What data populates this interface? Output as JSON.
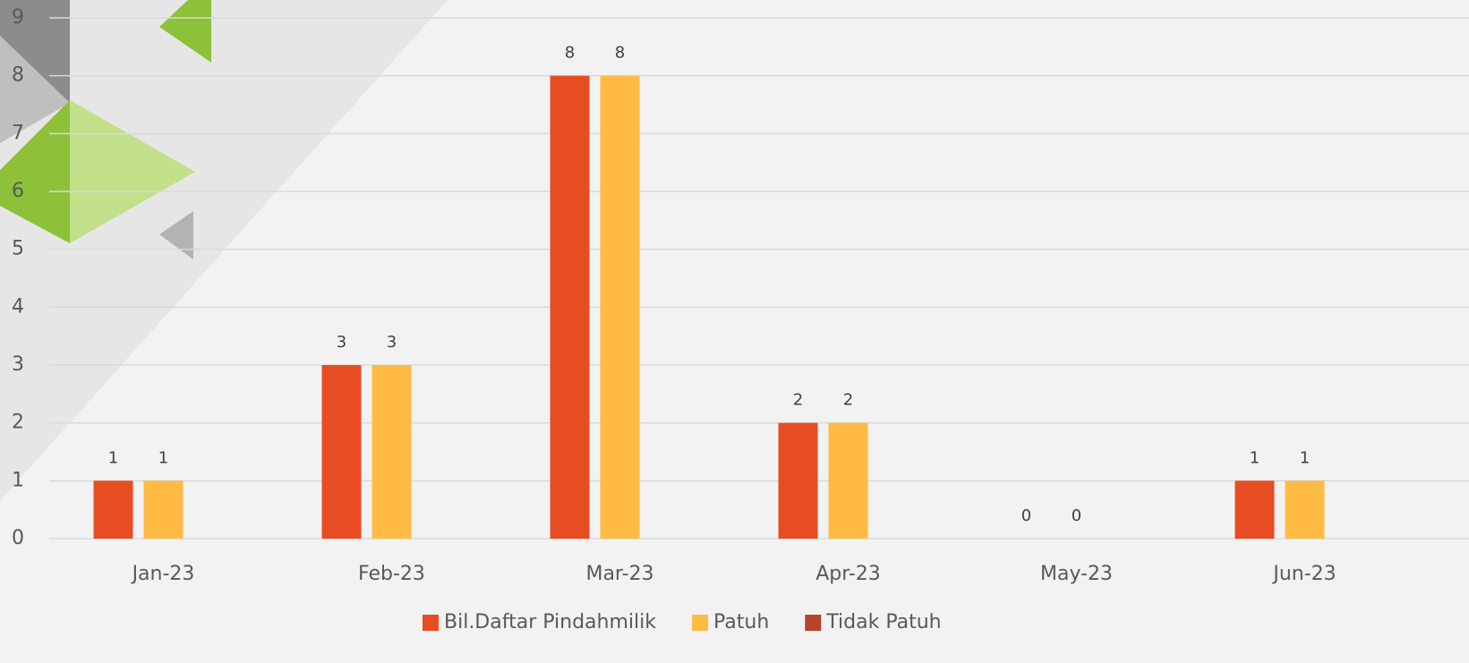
{
  "chart_data": {
    "type": "bar",
    "categories": [
      "Jan-23",
      "Feb-23",
      "Mar-23",
      "Apr-23",
      "May-23",
      "Jun-23"
    ],
    "series": [
      {
        "name": "Bil.Daftar Pindahmilik",
        "color": "#e84c22",
        "values": [
          1,
          3,
          8,
          2,
          0,
          1
        ]
      },
      {
        "name": "Patuh",
        "color": "#ffbb44",
        "values": [
          1,
          3,
          8,
          2,
          0,
          1
        ]
      },
      {
        "name": "Tidak Patuh",
        "color": "#b5442a",
        "values": [
          null,
          null,
          null,
          null,
          null,
          null
        ]
      }
    ],
    "ylim": [
      0,
      9
    ],
    "yticks": [
      0,
      1,
      2,
      3,
      4,
      5,
      6,
      7,
      8,
      9
    ],
    "grid": true,
    "legend": "bottom"
  }
}
